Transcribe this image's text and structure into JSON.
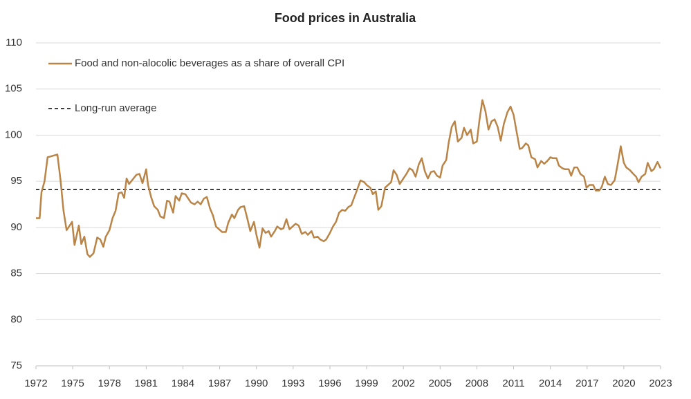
{
  "chart_data": {
    "type": "line",
    "title": "Food prices in Australia",
    "x": [
      1972.0,
      1972.3,
      1972.45,
      1972.7,
      1972.95,
      1973.75,
      1974.0,
      1974.25,
      1974.5,
      1974.7,
      1974.95,
      1975.15,
      1975.5,
      1975.7,
      1975.95,
      1976.2,
      1976.4,
      1976.7,
      1977.0,
      1977.25,
      1977.5,
      1977.7,
      1978.0,
      1978.25,
      1978.5,
      1978.75,
      1979.0,
      1979.2,
      1979.4,
      1979.6,
      1979.9,
      1980.2,
      1980.45,
      1980.7,
      1981.0,
      1981.15,
      1981.4,
      1981.65,
      1981.95,
      1982.15,
      1982.45,
      1982.7,
      1982.9,
      1983.2,
      1983.4,
      1983.7,
      1983.9,
      1984.2,
      1984.4,
      1984.65,
      1984.95,
      1985.2,
      1985.45,
      1985.7,
      1985.95,
      1986.2,
      1986.45,
      1986.7,
      1986.95,
      1987.2,
      1987.5,
      1987.7,
      1988.0,
      1988.2,
      1988.5,
      1988.7,
      1989.0,
      1989.25,
      1989.5,
      1989.8,
      1990.0,
      1990.25,
      1990.5,
      1990.75,
      1991.0,
      1991.2,
      1991.5,
      1991.7,
      1992.0,
      1992.2,
      1992.45,
      1992.7,
      1992.95,
      1993.2,
      1993.45,
      1993.7,
      1994.0,
      1994.2,
      1994.5,
      1994.7,
      1995.0,
      1995.2,
      1995.5,
      1995.7,
      1996.0,
      1996.25,
      1996.5,
      1996.75,
      1997.0,
      1997.25,
      1997.5,
      1997.75,
      1998.0,
      1998.2,
      1998.5,
      1998.8,
      1999.0,
      1999.3,
      1999.5,
      1999.75,
      1999.95,
      2000.2,
      2000.5,
      2000.75,
      2001.0,
      2001.2,
      2001.45,
      2001.7,
      2001.95,
      2002.25,
      2002.5,
      2002.75,
      2003.0,
      2003.25,
      2003.5,
      2003.75,
      2004.0,
      2004.25,
      2004.5,
      2004.75,
      2005.0,
      2005.2,
      2005.5,
      2005.7,
      2005.95,
      2006.2,
      2006.45,
      2006.75,
      2006.95,
      2007.2,
      2007.5,
      2007.7,
      2008.0,
      2008.2,
      2008.45,
      2008.7,
      2008.95,
      2009.2,
      2009.45,
      2009.7,
      2009.95,
      2010.2,
      2010.5,
      2010.75,
      2011.0,
      2011.2,
      2011.5,
      2011.7,
      2012.0,
      2012.2,
      2012.45,
      2012.75,
      2012.95,
      2013.25,
      2013.5,
      2013.75,
      2014.0,
      2014.2,
      2014.5,
      2014.7,
      2015.0,
      2015.2,
      2015.5,
      2015.7,
      2015.95,
      2016.2,
      2016.45,
      2016.75,
      2016.95,
      2017.2,
      2017.5,
      2017.7,
      2018.0,
      2018.2,
      2018.45,
      2018.7,
      2018.95,
      2019.25,
      2019.45,
      2019.75,
      2020.0,
      2020.2,
      2020.5,
      2020.7,
      2021.0,
      2021.2,
      2021.45,
      2021.75,
      2021.95,
      2022.25,
      2022.45,
      2022.75,
      2023.0
    ],
    "series": [
      {
        "name": "Food and non-alocolic beverages as a share of overall CPI",
        "color": "#b98446",
        "values": [
          91.0,
          91.0,
          93.8,
          95.0,
          97.6,
          97.9,
          95.2,
          91.8,
          89.7,
          90.1,
          90.6,
          88.1,
          90.2,
          88.2,
          89.0,
          87.1,
          86.8,
          87.2,
          88.9,
          88.7,
          87.9,
          89.0,
          89.7,
          91.0,
          91.8,
          93.7,
          93.8,
          93.2,
          95.3,
          94.7,
          95.2,
          95.7,
          95.8,
          94.8,
          96.3,
          94.6,
          93.3,
          92.3,
          91.9,
          91.2,
          91.0,
          92.9,
          92.8,
          91.6,
          93.4,
          92.9,
          93.7,
          93.6,
          93.2,
          92.7,
          92.5,
          92.8,
          92.5,
          93.1,
          93.3,
          92.1,
          91.3,
          90.1,
          89.8,
          89.5,
          89.5,
          90.5,
          91.4,
          91.0,
          91.9,
          92.2,
          92.3,
          91.0,
          89.6,
          90.6,
          89.2,
          87.8,
          89.9,
          89.4,
          89.6,
          89.0,
          89.6,
          90.1,
          89.8,
          89.9,
          90.9,
          89.8,
          90.1,
          90.4,
          90.2,
          89.3,
          89.5,
          89.2,
          89.6,
          88.9,
          89.0,
          88.7,
          88.5,
          88.7,
          89.4,
          90.1,
          90.6,
          91.6,
          91.9,
          91.8,
          92.2,
          92.4,
          93.3,
          94.0,
          95.1,
          94.9,
          94.6,
          94.3,
          93.6,
          93.9,
          91.9,
          92.3,
          94.3,
          94.6,
          94.9,
          96.2,
          95.7,
          94.7,
          95.2,
          95.8,
          96.4,
          96.2,
          95.5,
          96.8,
          97.5,
          96.1,
          95.3,
          96.0,
          96.1,
          95.6,
          95.4,
          96.7,
          97.3,
          99.2,
          100.9,
          101.5,
          99.3,
          99.7,
          100.8,
          100.0,
          100.6,
          99.1,
          99.3,
          101.5,
          103.8,
          102.6,
          100.6,
          101.5,
          101.7,
          100.9,
          99.4,
          101.2,
          102.5,
          103.1,
          102.2,
          100.7,
          98.5,
          98.6,
          99.1,
          98.9,
          97.6,
          97.4,
          96.5,
          97.2,
          96.9,
          97.2,
          97.6,
          97.5,
          97.5,
          96.7,
          96.4,
          96.3,
          96.3,
          95.6,
          96.5,
          96.5,
          95.8,
          95.5,
          94.3,
          94.6,
          94.6,
          94.0,
          94.0,
          94.4,
          95.5,
          94.7,
          94.6,
          95.1,
          96.5,
          98.8,
          97.0,
          96.5,
          96.2,
          95.9,
          95.5,
          94.9,
          95.5,
          95.8,
          97.0,
          96.1,
          96.3,
          97.1,
          96.4
        ]
      }
    ],
    "average": {
      "name": "Long-run average",
      "value": 94.1,
      "color": "#000000"
    },
    "xlim": [
      1972,
      2023
    ],
    "xticks": [
      1972,
      1975,
      1978,
      1981,
      1984,
      1987,
      1990,
      1993,
      1996,
      1999,
      2002,
      2005,
      2008,
      2011,
      2014,
      2017,
      2020,
      2023
    ],
    "ylim": [
      75,
      110
    ],
    "yticks": [
      75,
      80,
      85,
      90,
      95,
      100,
      105,
      110
    ],
    "grid": true
  }
}
